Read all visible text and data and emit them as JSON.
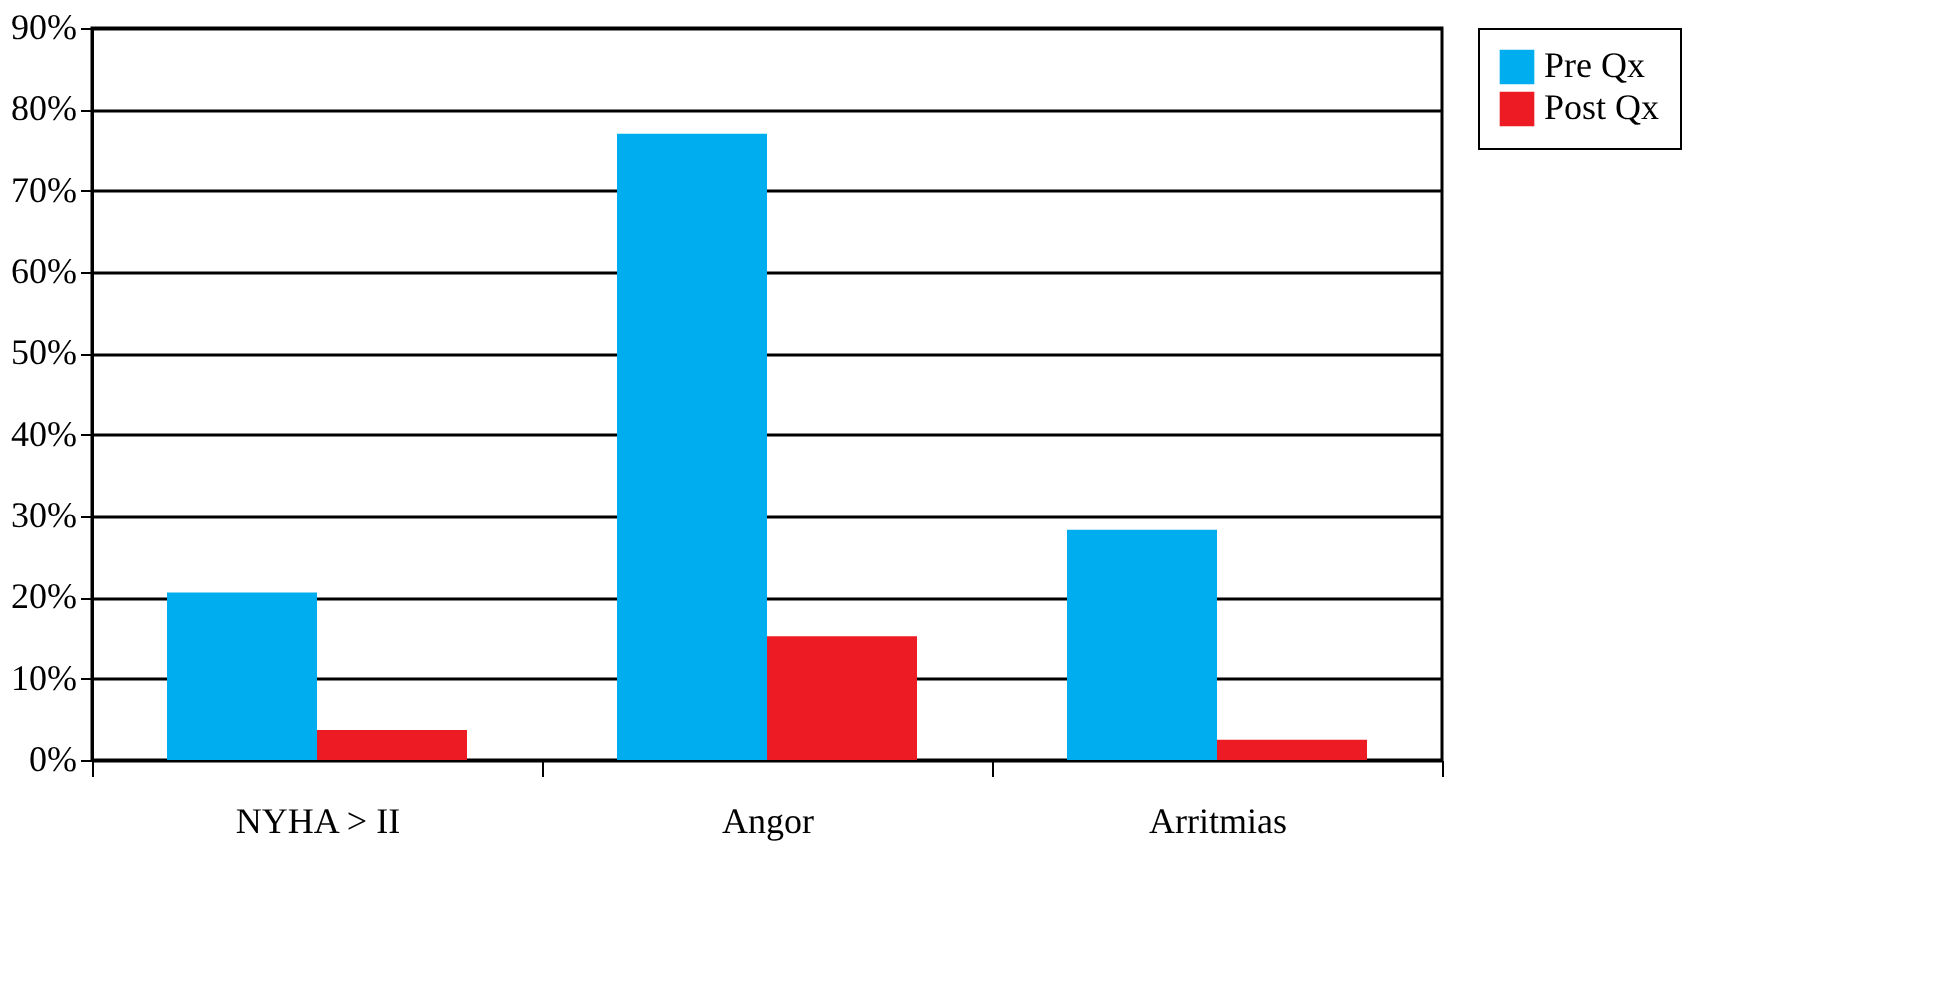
{
  "chart_data": {
    "type": "bar",
    "categories": [
      "NYHA > II",
      "Angor",
      "Arritmias"
    ],
    "series": [
      {
        "name": "Pre Qx",
        "color": "#00aeef",
        "values": [
          20.6,
          77,
          28.3
        ]
      },
      {
        "name": "Post Qx",
        "color": "#ed1c24",
        "values": [
          3.7,
          15.2,
          2.5
        ]
      }
    ],
    "ylim": [
      0,
      90
    ],
    "yticks": [
      {
        "value": 0,
        "label": "0%"
      },
      {
        "value": 10,
        "label": "10%"
      },
      {
        "value": 20,
        "label": "20%"
      },
      {
        "value": 30,
        "label": "30%"
      },
      {
        "value": 40,
        "label": "40%"
      },
      {
        "value": 50,
        "label": "50%"
      },
      {
        "value": 60,
        "label": "60%"
      },
      {
        "value": 70,
        "label": "70%"
      },
      {
        "value": 80,
        "label": "80%"
      },
      {
        "value": 90,
        "label": "90%"
      }
    ],
    "grid": "y",
    "legend": "right"
  }
}
